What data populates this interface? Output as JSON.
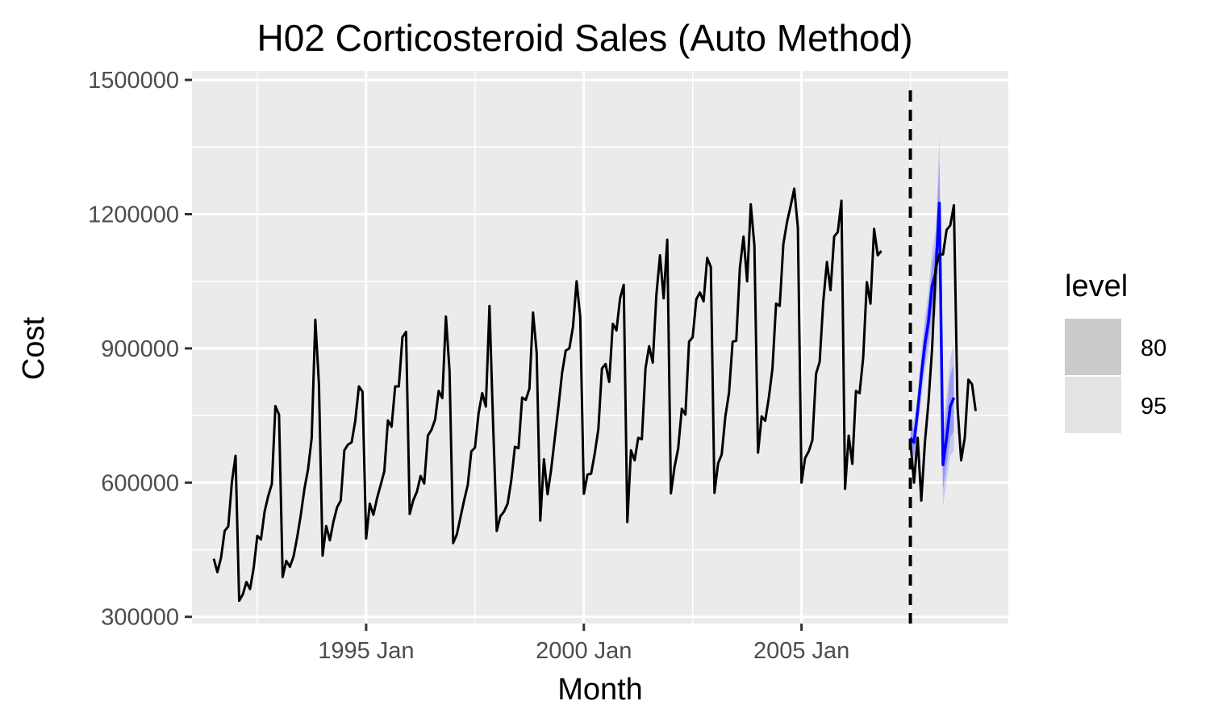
{
  "chart_data": {
    "type": "line",
    "title": "H02 Corticosteroid Sales (Auto Method)",
    "xlabel": "Month",
    "ylabel": "Cost",
    "xlim": [
      "1991-01",
      "2009-10"
    ],
    "ylim": [
      285000,
      1520000
    ],
    "x_ticks": [
      {
        "date": "1995-01",
        "label": "1995 Jan"
      },
      {
        "date": "2000-01",
        "label": "2000 Jan"
      },
      {
        "date": "2005-01",
        "label": "2005 Jan"
      }
    ],
    "x_minor_ticks": [
      "1992-07",
      "1997-07",
      "2002-07",
      "2007-07"
    ],
    "y_ticks": [
      {
        "value": 300000,
        "label": "300000"
      },
      {
        "value": 600000,
        "label": "600000"
      },
      {
        "value": 900000,
        "label": "900000"
      },
      {
        "value": 1200000,
        "label": "1200000"
      },
      {
        "value": 1500000,
        "label": "1500000"
      }
    ],
    "grid": true,
    "forecast_start_marker": "2007-07",
    "series": [
      {
        "kind": "observed",
        "color": "#000000",
        "start": "1991-07",
        "values": [
          430000,
          400000,
          432000,
          492000,
          502000,
          602000,
          660000,
          336000,
          350000,
          378000,
          362000,
          410000,
          481000,
          473000,
          535000,
          570000,
          597000,
          771000,
          752000,
          389000,
          425000,
          412000,
          435000,
          478000,
          528000,
          586000,
          630000,
          700000,
          964000,
          820000,
          437000,
          503000,
          471000,
          513000,
          545000,
          560000,
          672000,
          685000,
          690000,
          738000,
          815000,
          803000,
          475000,
          553000,
          528000,
          565000,
          595000,
          625000,
          739000,
          725000,
          815000,
          815000,
          925000,
          937000,
          530000,
          561000,
          580000,
          615000,
          598000,
          705000,
          718000,
          741000,
          805000,
          789000,
          971000,
          849000,
          465000,
          484000,
          522000,
          560000,
          594000,
          670000,
          678000,
          755000,
          800000,
          770000,
          995000,
          730000,
          492000,
          525000,
          535000,
          553000,
          605000,
          680000,
          677000,
          790000,
          785000,
          810000,
          980000,
          890000,
          515000,
          652000,
          574000,
          630000,
          700000,
          770000,
          845000,
          895000,
          900000,
          948000,
          1050000,
          970000,
          575000,
          618000,
          620000,
          665000,
          720000,
          855000,
          865000,
          825000,
          955000,
          940000,
          1012000,
          1042000,
          512000,
          672000,
          650000,
          700000,
          697000,
          855000,
          905000,
          868000,
          1020000,
          1108000,
          1012000,
          1143000,
          576000,
          635000,
          676000,
          765000,
          752000,
          915000,
          925000,
          1010000,
          1025000,
          1005000,
          1102000,
          1082000,
          577000,
          643000,
          663000,
          748000,
          800000,
          915000,
          917000,
          1080000,
          1150000,
          1050000,
          1222000,
          1130000,
          667000,
          748000,
          738000,
          790000,
          855000,
          1000000,
          995000,
          1133000,
          1182000,
          1218000,
          1257000,
          1170000,
          600000,
          655000,
          670000,
          695000,
          843000,
          870000,
          1005000,
          1093000,
          1030000,
          1150000,
          1160000,
          1230000,
          586000,
          705000,
          642000,
          805000,
          800000,
          880000,
          1048000,
          1000000,
          1167000,
          1108000,
          1118000
        ]
      },
      {
        "kind": "forecast",
        "color": "#0000ff",
        "start": "2007-07",
        "values": [
          700000,
          690000,
          760000,
          840000,
          910000,
          960000,
          1040000,
          1070000,
          1225000,
          640000,
          700000,
          770000,
          790000
        ],
        "band_80": {
          "lower": [
            675000,
            660000,
            735000,
            805000,
            870000,
            915000,
            990000,
            1010000,
            1130000,
            585000,
            640000,
            700000,
            715000
          ],
          "upper": [
            725000,
            720000,
            785000,
            875000,
            950000,
            1005000,
            1090000,
            1130000,
            1320000,
            700000,
            760000,
            840000,
            865000
          ]
        },
        "band_95": {
          "lower": [
            660000,
            645000,
            720000,
            785000,
            850000,
            890000,
            960000,
            975000,
            1075000,
            545000,
            605000,
            660000,
            670000
          ],
          "upper": [
            740000,
            735000,
            800000,
            895000,
            970000,
            1030000,
            1120000,
            1165000,
            1375000,
            735000,
            795000,
            880000,
            910000
          ]
        }
      },
      {
        "kind": "actual",
        "color": "#000000",
        "start": "2007-07",
        "values": [
          690000,
          600000,
          700000,
          560000,
          690000,
          780000,
          900000,
          1080000,
          1110000,
          1110000,
          1165000,
          1175000,
          1220000,
          770000,
          650000,
          700000,
          830000,
          820000,
          760000
        ]
      }
    ],
    "legend": {
      "title": "level",
      "placement": "right",
      "entries": [
        {
          "label": "80",
          "color": "#cbcbcb"
        },
        {
          "label": "95",
          "color": "#e3e3e3"
        }
      ]
    }
  }
}
